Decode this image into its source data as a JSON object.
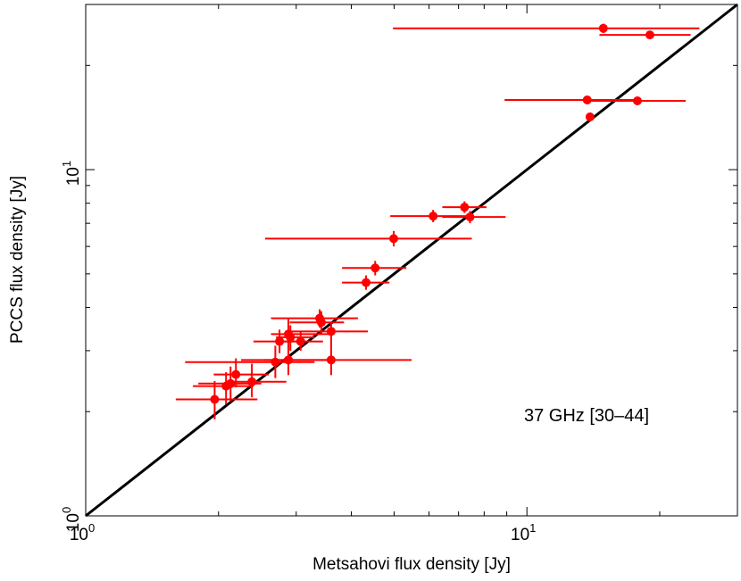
{
  "chart_data": {
    "type": "scatter",
    "xscale": "log",
    "yscale": "log",
    "xlim": [
      1,
      30
    ],
    "ylim": [
      1,
      30
    ],
    "xlabel": "Metsahovi flux density [Jy]",
    "ylabel": "PCCS flux density [Jy]",
    "annotation": "37 GHz [30–44]",
    "x_tick_labels": [
      {
        "base": "10",
        "exp": "0",
        "value": 1
      },
      {
        "base": "10",
        "exp": "1",
        "value": 10
      }
    ],
    "y_tick_labels": [
      {
        "base": "10",
        "exp": "0",
        "value": 1
      },
      {
        "base": "10",
        "exp": "1",
        "value": 10
      }
    ],
    "grid": false,
    "reference_line": "y = x",
    "colors": {
      "points": "#ff0000",
      "line": "#000000"
    },
    "points": [
      {
        "x": 14.9,
        "y": 25.6,
        "xlo": 4.97,
        "xhi": 24.6,
        "ylo": 24.8,
        "yhi": 26.4
      },
      {
        "x": 19.0,
        "y": 24.5,
        "xlo": 14.6,
        "xhi": 23.5,
        "ylo": 23.8,
        "yhi": 25.2
      },
      {
        "x": 13.7,
        "y": 15.9,
        "xlo": 8.9,
        "xhi": 17.8,
        "ylo": 15.5,
        "yhi": 16.3
      },
      {
        "x": 17.8,
        "y": 15.8,
        "xlo": 13.7,
        "xhi": 22.9,
        "ylo": 15.4,
        "yhi": 16.2
      },
      {
        "x": 13.9,
        "y": 14.2,
        "xlo": 13.9,
        "xhi": 13.9,
        "ylo": 13.9,
        "yhi": 14.5
      },
      {
        "x": 7.22,
        "y": 7.79,
        "xlo": 6.43,
        "xhi": 8.1,
        "ylo": 7.5,
        "yhi": 8.1
      },
      {
        "x": 6.13,
        "y": 7.34,
        "xlo": 4.9,
        "xhi": 7.55,
        "ylo": 7.05,
        "yhi": 7.65
      },
      {
        "x": 7.43,
        "y": 7.3,
        "xlo": 6.43,
        "xhi": 8.95,
        "ylo": 7.0,
        "yhi": 7.6
      },
      {
        "x": 4.99,
        "y": 6.32,
        "xlo": 2.55,
        "xhi": 7.5,
        "ylo": 6.0,
        "yhi": 6.65
      },
      {
        "x": 4.53,
        "y": 5.2,
        "xlo": 3.81,
        "xhi": 5.33,
        "ylo": 4.95,
        "yhi": 5.45
      },
      {
        "x": 4.32,
        "y": 4.72,
        "xlo": 3.81,
        "xhi": 4.88,
        "ylo": 4.5,
        "yhi": 4.95
      },
      {
        "x": 3.39,
        "y": 3.72,
        "xlo": 2.63,
        "xhi": 4.14,
        "ylo": 3.5,
        "yhi": 3.95
      },
      {
        "x": 3.42,
        "y": 3.62,
        "xlo": 2.9,
        "xhi": 3.85,
        "ylo": 3.35,
        "yhi": 3.9
      },
      {
        "x": 3.6,
        "y": 3.41,
        "xlo": 2.84,
        "xhi": 4.36,
        "ylo": 3.2,
        "yhi": 3.62
      },
      {
        "x": 2.88,
        "y": 3.35,
        "xlo": 2.63,
        "xhi": 3.59,
        "ylo": 3.05,
        "yhi": 3.7
      },
      {
        "x": 2.91,
        "y": 3.28,
        "xlo": 2.7,
        "xhi": 3.3,
        "ylo": 3.0,
        "yhi": 3.55
      },
      {
        "x": 3.07,
        "y": 3.19,
        "xlo": 2.75,
        "xhi": 3.45,
        "ylo": 3.0,
        "yhi": 3.4
      },
      {
        "x": 2.75,
        "y": 3.19,
        "xlo": 2.4,
        "xhi": 3.1,
        "ylo": 2.95,
        "yhi": 3.45
      },
      {
        "x": 2.88,
        "y": 2.82,
        "xlo": 2.25,
        "xhi": 3.55,
        "ylo": 2.55,
        "yhi": 3.3
      },
      {
        "x": 3.6,
        "y": 2.82,
        "xlo": 2.54,
        "xhi": 5.48,
        "ylo": 2.55,
        "yhi": 3.35
      },
      {
        "x": 2.69,
        "y": 2.78,
        "xlo": 1.68,
        "xhi": 3.3,
        "ylo": 2.5,
        "yhi": 3.1
      },
      {
        "x": 2.19,
        "y": 2.56,
        "xlo": 1.95,
        "xhi": 2.6,
        "ylo": 2.35,
        "yhi": 2.85
      },
      {
        "x": 2.38,
        "y": 2.44,
        "xlo": 2.15,
        "xhi": 2.85,
        "ylo": 2.2,
        "yhi": 2.75
      },
      {
        "x": 2.13,
        "y": 2.41,
        "xlo": 1.8,
        "xhi": 2.5,
        "ylo": 2.15,
        "yhi": 2.7
      },
      {
        "x": 2.08,
        "y": 2.37,
        "xlo": 1.75,
        "xhi": 2.4,
        "ylo": 2.1,
        "yhi": 2.6
      },
      {
        "x": 1.96,
        "y": 2.17,
        "xlo": 1.6,
        "xhi": 2.45,
        "ylo": 1.9,
        "yhi": 2.45
      }
    ]
  }
}
